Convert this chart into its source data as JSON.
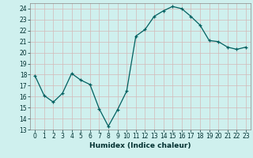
{
  "x": [
    0,
    1,
    2,
    3,
    4,
    5,
    6,
    7,
    8,
    9,
    10,
    11,
    12,
    13,
    14,
    15,
    16,
    17,
    18,
    19,
    20,
    21,
    22,
    23
  ],
  "y": [
    17.9,
    16.1,
    15.5,
    16.3,
    18.1,
    17.5,
    17.1,
    14.9,
    13.3,
    14.8,
    16.5,
    21.5,
    22.1,
    23.3,
    23.8,
    24.2,
    24.0,
    23.3,
    22.5,
    21.1,
    21.0,
    20.5,
    20.3,
    20.5
  ],
  "xlabel": "Humidex (Indice chaleur)",
  "bg_color": "#cff0ee",
  "grid_color": "#d4b8b8",
  "line_color": "#006060",
  "marker_color": "#006060",
  "ylim": [
    13,
    24.5
  ],
  "xlim": [
    -0.5,
    23.5
  ],
  "yticks": [
    13,
    14,
    15,
    16,
    17,
    18,
    19,
    20,
    21,
    22,
    23,
    24
  ],
  "xticks": [
    0,
    1,
    2,
    3,
    4,
    5,
    6,
    7,
    8,
    9,
    10,
    11,
    12,
    13,
    14,
    15,
    16,
    17,
    18,
    19,
    20,
    21,
    22,
    23
  ],
  "xtick_labels": [
    "0",
    "1",
    "2",
    "3",
    "4",
    "5",
    "6",
    "7",
    "8",
    "9",
    "10",
    "11",
    "12",
    "13",
    "14",
    "15",
    "16",
    "17",
    "18",
    "19",
    "20",
    "21",
    "22",
    "23"
  ]
}
